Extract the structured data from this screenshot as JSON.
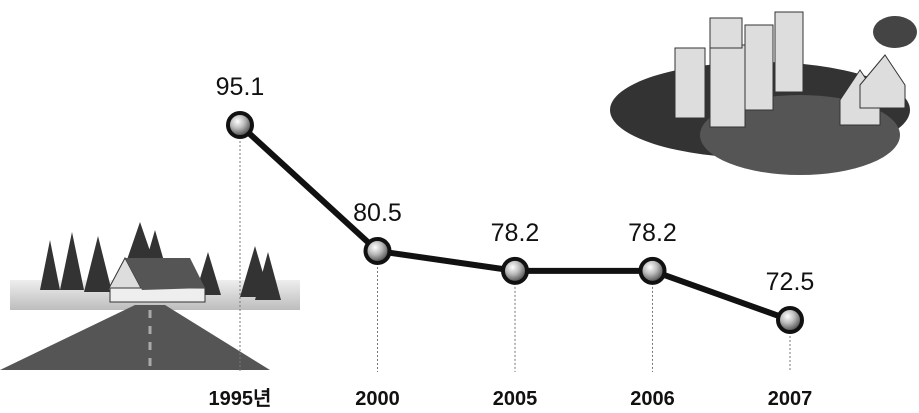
{
  "chart_data": {
    "type": "line",
    "categories": [
      "1995년",
      "2000",
      "2005",
      "2006",
      "2007"
    ],
    "values": [
      95.1,
      80.5,
      78.2,
      78.2,
      72.5
    ],
    "color": "#111111"
  }
}
